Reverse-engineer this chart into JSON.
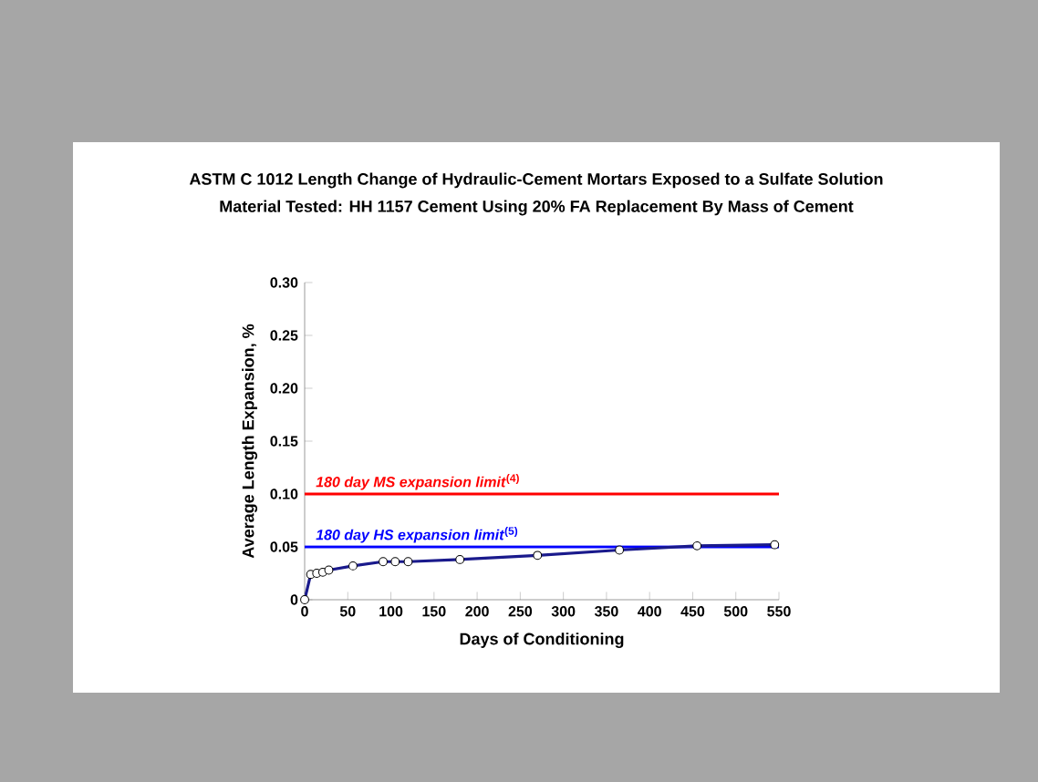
{
  "chart_data": {
    "type": "line",
    "title": "ASTM C 1012 Length Change of Hydraulic-Cement Mortars Exposed to a Sulfate Solution",
    "subtitle": "Material Tested: HH 1157 Cement Using 20% FA Replacement By Mass of Cement",
    "xlabel": "Days of Conditioning",
    "ylabel": "Average Length Expansion, %",
    "x": [
      0,
      7,
      14,
      21,
      28,
      56,
      91,
      105,
      120,
      180,
      270,
      365,
      455,
      545
    ],
    "series": [
      {
        "color": "#1a1a8c",
        "values": [
          0,
          0.024,
          0.025,
          0.026,
          0.028,
          0.032,
          0.036,
          0.036,
          0.036,
          0.038,
          0.042,
          0.047,
          0.051,
          0.052
        ]
      }
    ],
    "xlim": [
      0,
      550
    ],
    "xticks": [
      0,
      50,
      100,
      150,
      200,
      250,
      300,
      350,
      400,
      450,
      500,
      550
    ],
    "ylim": [
      0,
      0.3
    ],
    "yticks": [
      {
        "value": 0,
        "label": "0"
      },
      {
        "value": 0.05,
        "label": "0.05"
      },
      {
        "value": 0.1,
        "label": "0.10"
      },
      {
        "value": 0.15,
        "label": "0.15"
      },
      {
        "value": 0.2,
        "label": "0.20"
      },
      {
        "value": 0.25,
        "label": "0.25"
      },
      {
        "value": 0.3,
        "label": "0.30"
      }
    ],
    "ref_lines": [
      {
        "axis": "y",
        "value": 0.1,
        "label": "*180 day MS expansion limit*$^{(4)}$",
        "color": "#ff0000"
      },
      {
        "axis": "y",
        "value": 0.05,
        "label": "*180 day HS expansion limit*$^{(5)}$",
        "color": "#0000ff"
      }
    ],
    "marker": "circle",
    "line_style": "solid",
    "grid": false
  }
}
